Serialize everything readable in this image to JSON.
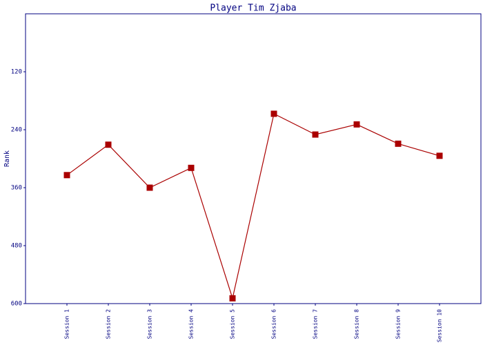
{
  "chart_data": {
    "type": "line",
    "title": "Player Tim Zjaba",
    "y_label": "Rank",
    "categories": [
      "Session 1",
      "Session 2",
      "Session 3",
      "Session 4",
      "Session 5",
      "Session 6",
      "Session 7",
      "Session 8",
      "Session 9",
      "Session 10"
    ],
    "series": [
      {
        "name": "Rank",
        "color": "#aa0000",
        "values": [
          334,
          271,
          360,
          319,
          589,
          207,
          250,
          229,
          269,
          294
        ]
      }
    ],
    "ylim": [
      600,
      0
    ],
    "yticks": [
      120,
      240,
      360,
      480,
      600
    ],
    "grid": false,
    "axis_color": "#000080"
  }
}
